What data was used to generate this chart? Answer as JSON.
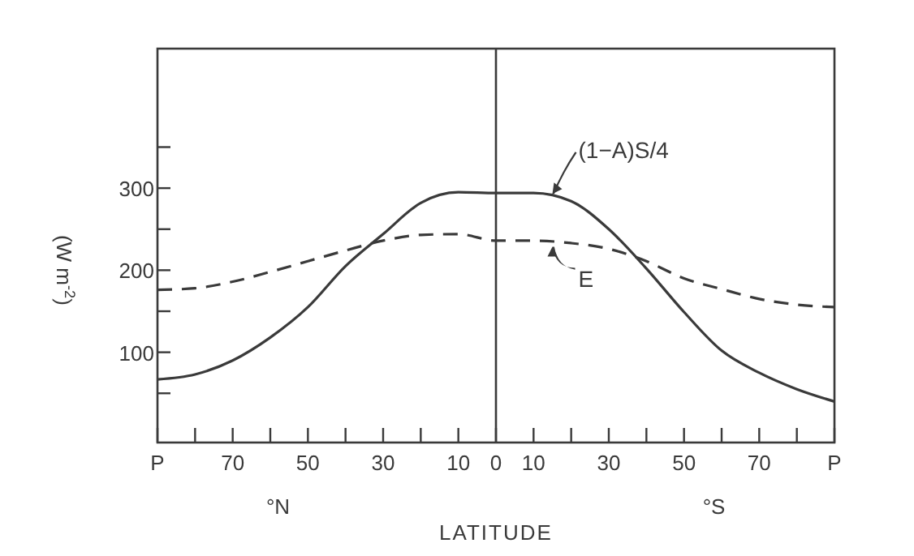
{
  "chart_data": {
    "type": "line",
    "xlabel": "LATITUDE",
    "ylabel": "(W m$^{-2}$)",
    "categories": [
      "P",
      null,
      "70",
      null,
      "50",
      null,
      "30",
      null,
      "10",
      "0",
      "10",
      null,
      "30",
      null,
      "50",
      null,
      "70",
      null,
      "P"
    ],
    "ylim": [
      -10,
      470
    ],
    "yticks": [
      {
        "value": 50,
        "label": null
      },
      100,
      {
        "value": 150,
        "label": null
      },
      200,
      {
        "value": 250,
        "label": null
      },
      300,
      {
        "value": 350,
        "label": null
      }
    ],
    "grid": false,
    "ref_lines": [
      {
        "axis": "x",
        "value": "0"
      }
    ],
    "series": [
      {
        "name": "(1−A)S/4",
        "color": "#3a3a3a",
        "line_style": "solid",
        "values": [
          67,
          73,
          90,
          118,
          155,
          205,
          244,
          282,
          295,
          294,
          294,
          284,
          250,
          202,
          149,
          102,
          75,
          55,
          40
        ]
      },
      {
        "name": "E",
        "color": "#3a3a3a",
        "line_style": "dashed",
        "values": [
          176,
          178,
          186,
          198,
          211,
          224,
          236,
          243,
          244,
          236,
          236,
          233,
          226,
          211,
          190,
          177,
          165,
          158,
          155
        ]
      }
    ],
    "annotations": [
      "°N",
      "°S"
    ]
  }
}
